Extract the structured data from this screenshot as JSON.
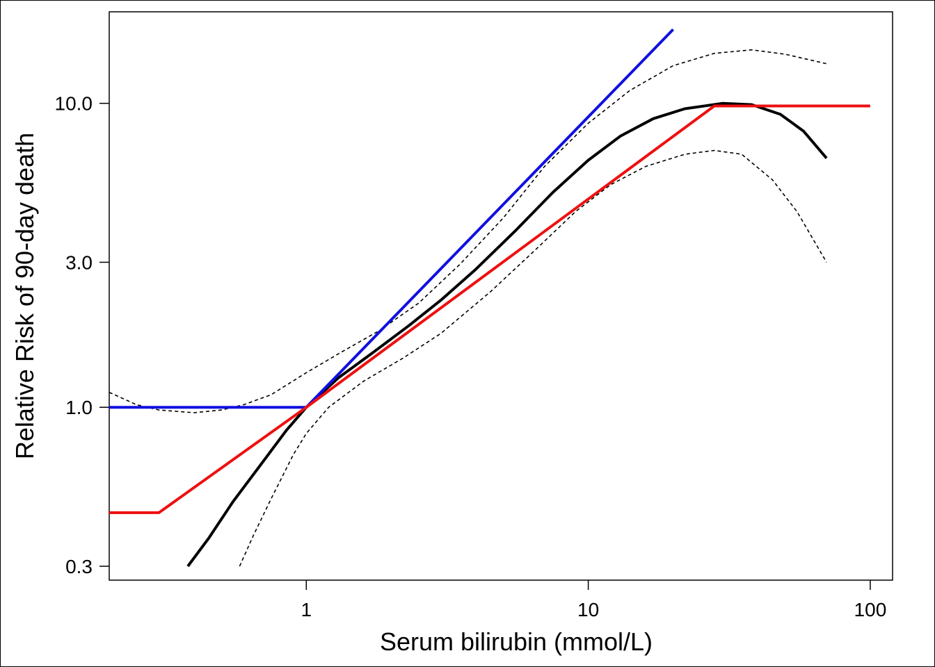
{
  "chart_data": {
    "type": "line",
    "xlabel": "Serum bilirubin (mmol/L)",
    "ylabel": "Relative Risk of 90-day death",
    "x_scale": "log",
    "y_scale": "log",
    "xlim": [
      0.2,
      120
    ],
    "ylim": [
      0.27,
      20
    ],
    "x_ticks": [
      1,
      10,
      100
    ],
    "x_tick_labels": [
      "1",
      "10",
      "100"
    ],
    "y_ticks": [
      0.3,
      1,
      3,
      10
    ],
    "y_tick_labels": [
      "0.3",
      "1.0",
      "3.0",
      "10.0"
    ],
    "grid": false,
    "legend": "none",
    "series": [
      {
        "style": "solid",
        "color": "#000000",
        "x": [
          0.38,
          0.45,
          0.55,
          0.7,
          0.85,
          1.0,
          1.3,
          1.7,
          2.3,
          3.0,
          4.0,
          5.5,
          7.5,
          10,
          13,
          17,
          22,
          30,
          38,
          48,
          58,
          70
        ],
        "y": [
          0.3,
          0.37,
          0.49,
          0.66,
          0.84,
          1.0,
          1.25,
          1.5,
          1.85,
          2.25,
          2.85,
          3.8,
          5.1,
          6.5,
          7.8,
          8.9,
          9.6,
          10.0,
          9.9,
          9.2,
          8.1,
          6.6
        ]
      },
      {
        "style": "dashed",
        "color": "#000000",
        "x": [
          0.2,
          0.25,
          0.3,
          0.4,
          0.5,
          0.6,
          0.75,
          1.0,
          1.3,
          1.8,
          2.5,
          3.5,
          5,
          7,
          10,
          14,
          20,
          28,
          38,
          50,
          70
        ],
        "y": [
          1.12,
          1.02,
          0.98,
          0.96,
          0.98,
          1.02,
          1.1,
          1.3,
          1.5,
          1.78,
          2.2,
          2.95,
          4.2,
          6.2,
          8.6,
          11.0,
          13.3,
          14.6,
          15.0,
          14.5,
          13.5
        ]
      },
      {
        "style": "dashed",
        "color": "#000000",
        "x": [
          0.58,
          0.65,
          0.75,
          0.9,
          1.0,
          1.2,
          1.6,
          2.2,
          3.0,
          4.5,
          6.5,
          9,
          12,
          16,
          22,
          28,
          35,
          45,
          55,
          70
        ],
        "y": [
          0.3,
          0.38,
          0.5,
          0.7,
          0.82,
          1.0,
          1.22,
          1.45,
          1.75,
          2.4,
          3.3,
          4.4,
          5.4,
          6.2,
          6.8,
          7.0,
          6.8,
          5.6,
          4.4,
          3.0
        ]
      },
      {
        "style": "solid",
        "color": "#1010e0",
        "x": [
          0.2,
          1.0,
          20
        ],
        "y": [
          1.0,
          1.0,
          17.5
        ]
      },
      {
        "style": "solid",
        "color": "#ee1010",
        "x": [
          0.2,
          0.3,
          1.0,
          28,
          100
        ],
        "y": [
          0.45,
          0.45,
          1.0,
          9.8,
          9.8
        ]
      }
    ]
  }
}
